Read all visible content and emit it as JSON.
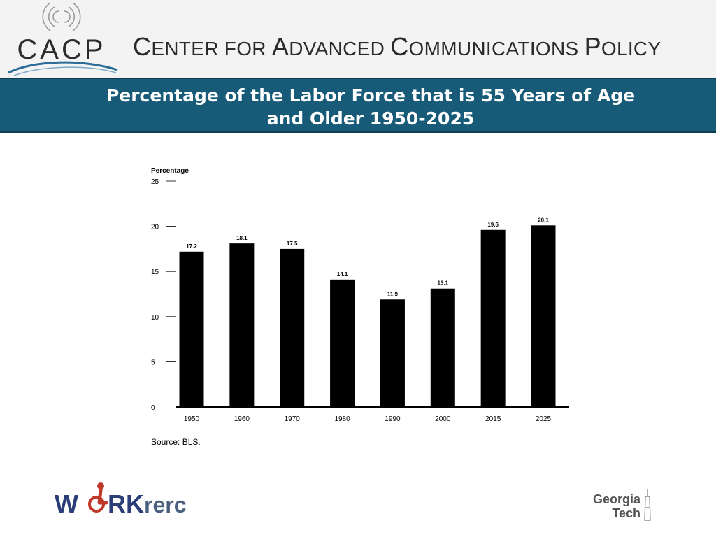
{
  "header": {
    "logo_text": "CACP",
    "center_name": {
      "w1_initial": "C",
      "w1_rest": "ENTER FOR",
      "w2_initial": "A",
      "w2_rest": "DVANCED",
      "w3_initial": "C",
      "w3_rest": "OMMUNICATIONS",
      "w4_initial": "P",
      "w4_rest": "OLICY"
    }
  },
  "title": {
    "line1": "Percentage of the Labor Force that is 55 Years of Age",
    "line2": "and Older 1950-2025"
  },
  "chart_data": {
    "type": "bar",
    "title": "",
    "ylabel": "Percentage",
    "xlabel": "",
    "categories": [
      "1950",
      "1960",
      "1970",
      "1980",
      "1990",
      "2000",
      "2015",
      "2025"
    ],
    "values": [
      17.2,
      18.1,
      17.5,
      14.1,
      11.9,
      13.1,
      19.6,
      20.1
    ],
    "data_labels": [
      "17.2",
      "18.1",
      "17.5",
      "14.1",
      "11.9",
      "13.1",
      "19.6",
      "20.1"
    ],
    "yticks": [
      0,
      5,
      10,
      15,
      20,
      25
    ],
    "ylim": [
      0,
      25
    ],
    "grid": false,
    "legend": "none",
    "bar_color": "#000000",
    "source": "Source: BLS."
  },
  "footer": {
    "left_logo": {
      "part1": "W",
      "part2": "RK",
      "part3": "rerc"
    },
    "right_logo": {
      "line1": "Georgia",
      "line2": "Tech"
    }
  },
  "colors": {
    "title_band": "#175b79",
    "logo_blue": "#2e6d97",
    "workrerc_navy": "#2c3e78",
    "workrerc_red": "#c0392b"
  }
}
